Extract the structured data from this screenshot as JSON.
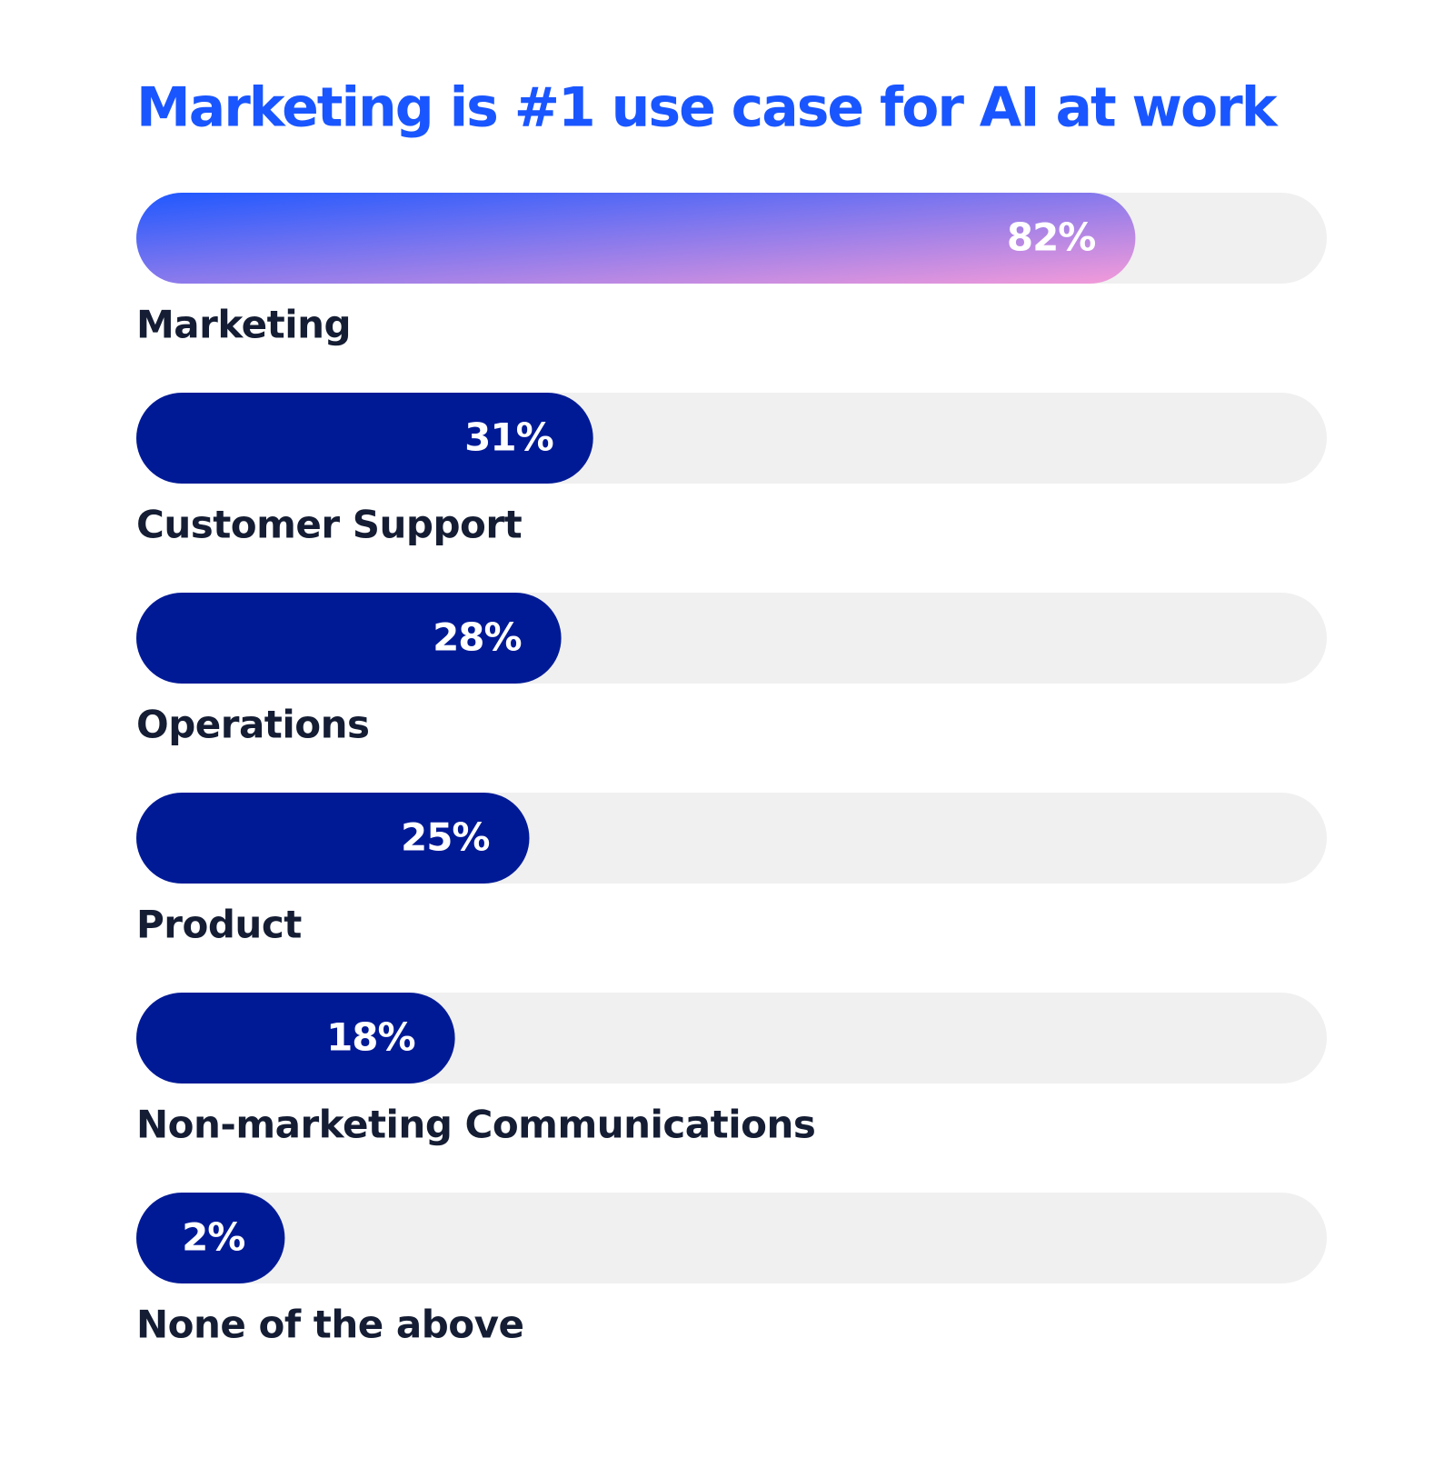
{
  "chart_data": {
    "type": "progress-bar",
    "title": "Marketing is #1 use case for AI at work",
    "categories": [
      "Marketing",
      "Customer Support",
      "Operations",
      "Product",
      "Non-marketing Communications",
      "None of the above"
    ],
    "values": [
      82,
      31,
      28,
      25,
      18,
      2
    ],
    "value_labels": [
      "82%",
      "31%",
      "28%",
      "25%",
      "18%",
      "2%"
    ],
    "xlim": [
      0,
      100
    ],
    "color": "#001a96",
    "track_color": "#f0f0f0",
    "highlight": {
      "index": 0,
      "gradient": [
        "#1f58ff",
        "#f49bd9"
      ]
    }
  }
}
